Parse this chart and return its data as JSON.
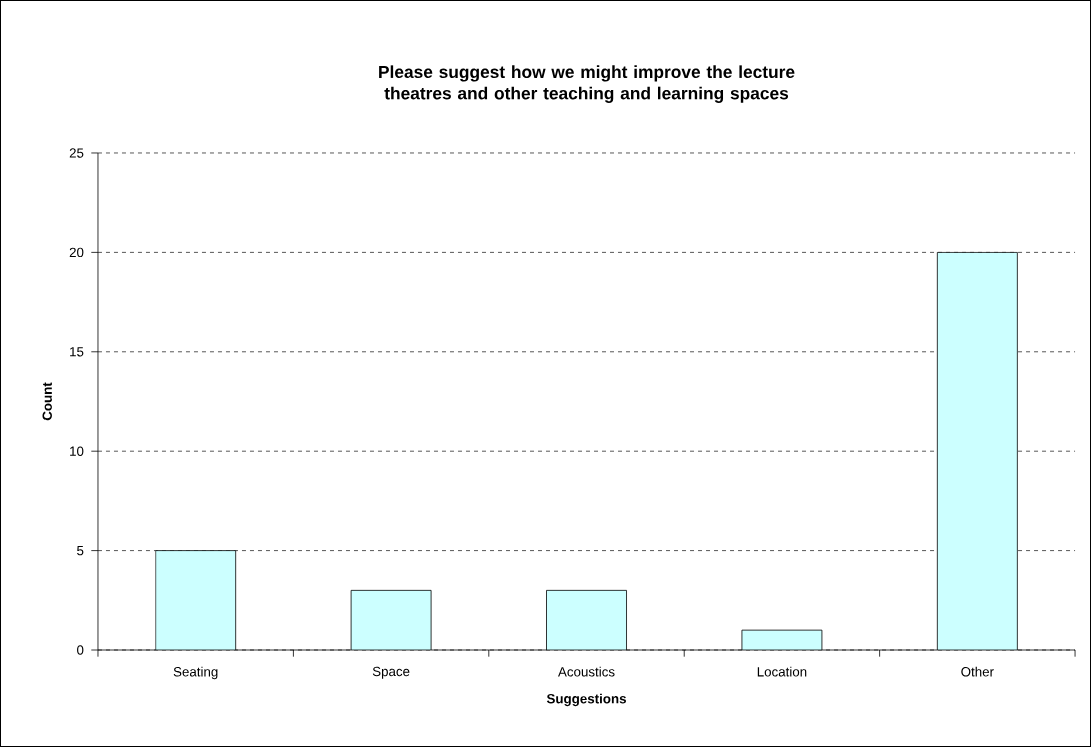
{
  "chart_data": {
    "type": "bar",
    "title": "Please suggest how we might improve the lecture theatres and other teaching and learning spaces",
    "xlabel": "Suggestions",
    "ylabel": "Count",
    "categories": [
      "Seating",
      "Space",
      "Acoustics",
      "Location",
      "Other"
    ],
    "values": [
      5,
      3,
      3,
      1,
      20
    ],
    "color": "#ccffff",
    "ylim": [
      0,
      25
    ],
    "yticks": [
      0,
      5,
      10,
      15,
      20,
      25
    ],
    "grid": "y"
  }
}
